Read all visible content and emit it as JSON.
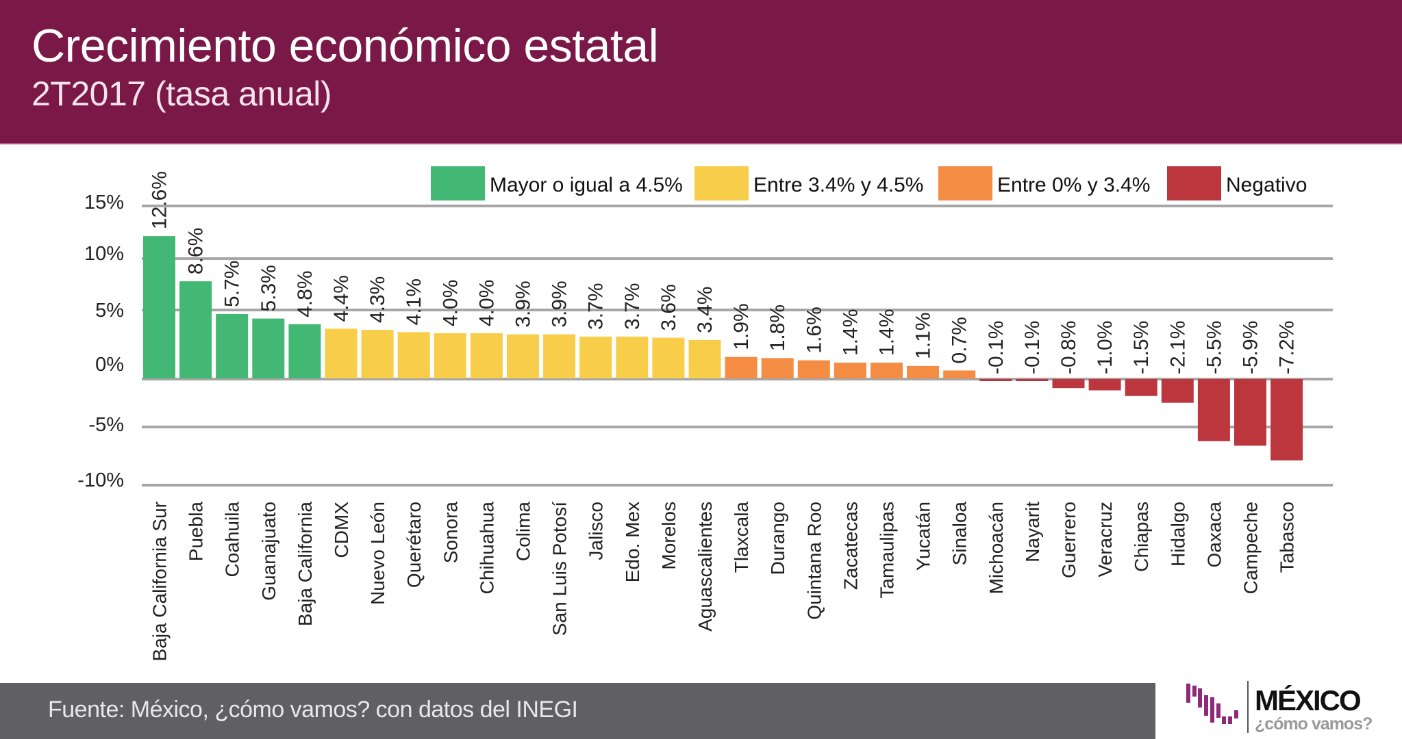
{
  "header": {
    "title": "Crecimiento económico estatal",
    "subtitle": "2T2017 (tasa anual)"
  },
  "footer": {
    "source": "Fuente: México, ¿cómo vamos? con datos del INEGI"
  },
  "logo": {
    "name": "MÉXICO",
    "tagline": "¿cómo vamos?",
    "color": "#8e2a78"
  },
  "chart_data": {
    "type": "bar",
    "title": "Crecimiento económico estatal",
    "subtitle": "2T2017 (tasa anual)",
    "xlabel": "",
    "ylabel": "",
    "ylim": [
      -10,
      15
    ],
    "grid": true,
    "yticks": [
      15,
      10,
      5,
      0,
      -5,
      -10
    ],
    "ytick_labels": [
      "15%",
      "10%",
      "5%",
      "0%",
      "-5%",
      "-10%"
    ],
    "legend_position": "top-right",
    "legend": [
      {
        "label": "Mayor o igual a 4.5%",
        "color": "#42b874"
      },
      {
        "label": "Entre 3.4% y 4.5%",
        "color": "#f8cd4a"
      },
      {
        "label": "Entre 0% y 3.4%",
        "color": "#f48c43"
      },
      {
        "label": "Negativo",
        "color": "#bc363d"
      }
    ],
    "categories": [
      "Baja California Sur",
      "Puebla",
      "Coahuila",
      "Guanajuato",
      "Baja California",
      "CDMX",
      "Nuevo León",
      "Querétaro",
      "Sonora",
      "Chihuahua",
      "Colima",
      "San Luis Potosí",
      "Jalisco",
      "Edo. Mex",
      "Morelos",
      "Aguascalientes",
      "Tlaxcala",
      "Durango",
      "Quintana Roo",
      "Zacatecas",
      "Tamaulipas",
      "Yucatán",
      "Sinaloa",
      "Michoacán",
      "Nayarit",
      "Guerrero",
      "Veracruz",
      "Chiapas",
      "Hidalgo",
      "Oaxaca",
      "Campeche",
      "Tabasco"
    ],
    "values": [
      12.6,
      8.6,
      5.7,
      5.3,
      4.8,
      4.4,
      4.3,
      4.1,
      4.0,
      4.0,
      3.9,
      3.9,
      3.7,
      3.7,
      3.6,
      3.4,
      1.9,
      1.8,
      1.6,
      1.4,
      1.4,
      1.1,
      0.7,
      -0.1,
      -0.1,
      -0.8,
      -1.0,
      -1.5,
      -2.1,
      -5.5,
      -5.9,
      -7.2
    ],
    "value_labels": [
      "12.6%",
      "8.6%",
      "5.7%",
      "5.3%",
      "4.8%",
      "4.4%",
      "4.3%",
      "4.1%",
      "4.0%",
      "4.0%",
      "3.9%",
      "3.9%",
      "3.7%",
      "3.7%",
      "3.6%",
      "3.4%",
      "1.9%",
      "1.8%",
      "1.6%",
      "1.4%",
      "1.4%",
      "1.1%",
      "0.7%",
      "-0.1%",
      "-0.1%",
      "-0.8%",
      "-1.0%",
      "-1.5%",
      "-2.1%",
      "-5.5%",
      "-5.9%",
      "-7.2%"
    ],
    "color_groups": [
      0,
      0,
      0,
      0,
      0,
      1,
      1,
      1,
      1,
      1,
      1,
      1,
      1,
      1,
      1,
      1,
      2,
      2,
      2,
      2,
      2,
      2,
      2,
      3,
      3,
      3,
      3,
      3,
      3,
      3,
      3,
      3
    ]
  }
}
